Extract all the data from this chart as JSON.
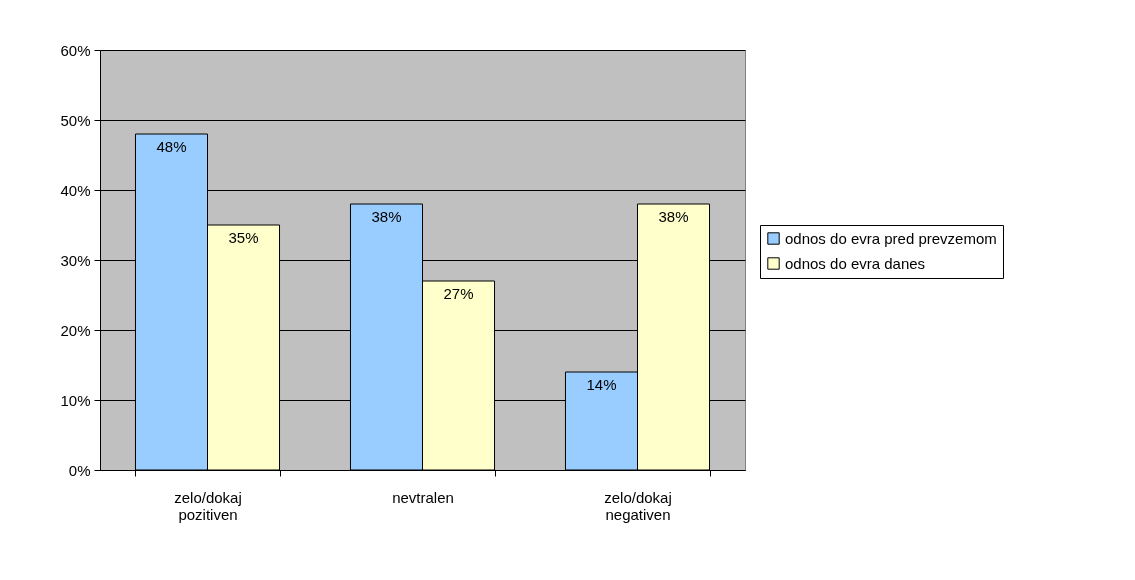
{
  "chart_data": {
    "type": "bar",
    "categories": [
      "zelo/dokaj pozitiven",
      "nevtralen",
      "zelo/dokaj negativen"
    ],
    "series": [
      {
        "name": "odnos do evra pred prevzemom",
        "color": "#99ccff",
        "values": [
          48,
          38,
          14
        ],
        "value_labels": [
          "48%",
          "38%",
          "14%"
        ]
      },
      {
        "name": "odnos do evra danes",
        "color": "#ffffcc",
        "values": [
          35,
          27,
          38
        ],
        "value_labels": [
          "35%",
          "27%",
          "38%"
        ]
      }
    ],
    "ylim": [
      0,
      60
    ],
    "yticks": [
      {
        "value": 0,
        "label": "0%"
      },
      {
        "value": 10,
        "label": "10%"
      },
      {
        "value": 20,
        "label": "20%"
      },
      {
        "value": 30,
        "label": "30%"
      },
      {
        "value": 40,
        "label": "40%"
      },
      {
        "value": 50,
        "label": "50%"
      },
      {
        "value": 60,
        "label": "60%"
      }
    ],
    "grid": "y",
    "legend": "right"
  }
}
